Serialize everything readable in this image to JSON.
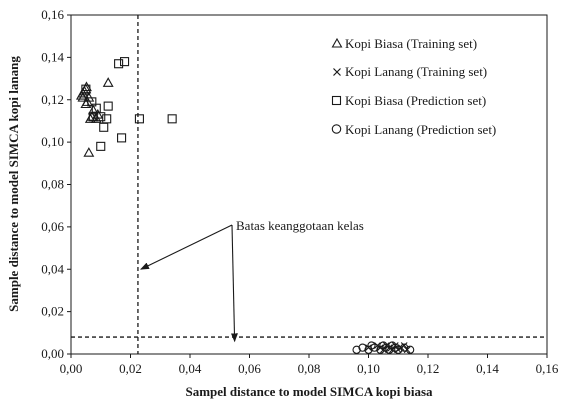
{
  "chart_data": {
    "type": "scatter",
    "xlabel": "Sampel distance to model SIMCA kopi biasa",
    "ylabel": "Sample distance to model SIMCA kopi lanang",
    "xlim": [
      0,
      0.16
    ],
    "ylim": [
      0,
      0.16
    ],
    "x_ticks": [
      "0,00",
      "0,02",
      "0,04",
      "0,06",
      "0,08",
      "0,10",
      "0,12",
      "0,14",
      "0,16"
    ],
    "y_ticks": [
      "0,00",
      "0,02",
      "0,04",
      "0,06",
      "0,08",
      "0,10",
      "0,12",
      "0,14",
      "0,16"
    ],
    "grid": false,
    "legend_position": "top-right",
    "series": [
      {
        "name": "Kopi Biasa (Training set)",
        "marker": "triangle",
        "points": [
          [
            0.004,
            0.123
          ],
          [
            0.005,
            0.125
          ],
          [
            0.0055,
            0.119
          ],
          [
            0.006,
            0.121
          ],
          [
            0.0065,
            0.111
          ],
          [
            0.007,
            0.112
          ],
          [
            0.0075,
            0.115
          ],
          [
            0.004,
            0.121
          ],
          [
            0.0045,
            0.124
          ],
          [
            0.0085,
            0.111
          ],
          [
            0.009,
            0.113
          ],
          [
            0.0125,
            0.128
          ],
          [
            0.006,
            0.095
          ],
          [
            0.005,
            0.118
          ],
          [
            0.0035,
            0.122
          ],
          [
            0.0052,
            0.126
          ]
        ]
      },
      {
        "name": "Kopi Lanang (Training set)",
        "marker": "cross",
        "points": [
          [
            0.1,
            0.003
          ],
          [
            0.103,
            0.004
          ],
          [
            0.105,
            0.002
          ],
          [
            0.106,
            0.004
          ],
          [
            0.107,
            0.003
          ],
          [
            0.108,
            0.002
          ],
          [
            0.109,
            0.004
          ],
          [
            0.11,
            0.002
          ],
          [
            0.111,
            0.003
          ],
          [
            0.113,
            0.002
          ],
          [
            0.104,
            0.003
          ],
          [
            0.112,
            0.004
          ]
        ]
      },
      {
        "name": "Kopi Biasa (Prediction set)",
        "marker": "square",
        "points": [
          [
            0.005,
            0.125
          ],
          [
            0.007,
            0.119
          ],
          [
            0.0085,
            0.116
          ],
          [
            0.01,
            0.112
          ],
          [
            0.01,
            0.098
          ],
          [
            0.011,
            0.107
          ],
          [
            0.0125,
            0.117
          ],
          [
            0.012,
            0.111
          ],
          [
            0.016,
            0.137
          ],
          [
            0.018,
            0.138
          ],
          [
            0.023,
            0.111
          ],
          [
            0.034,
            0.111
          ],
          [
            0.017,
            0.102
          ],
          [
            0.0075,
            0.112
          ]
        ]
      },
      {
        "name": "Kopi Lanang (Prediction set)",
        "marker": "circle",
        "points": [
          [
            0.096,
            0.002
          ],
          [
            0.098,
            0.003
          ],
          [
            0.1,
            0.002
          ],
          [
            0.101,
            0.004
          ],
          [
            0.102,
            0.003
          ],
          [
            0.104,
            0.002
          ],
          [
            0.105,
            0.004
          ],
          [
            0.106,
            0.003
          ],
          [
            0.107,
            0.002
          ],
          [
            0.108,
            0.004
          ],
          [
            0.109,
            0.003
          ],
          [
            0.11,
            0.002
          ],
          [
            0.112,
            0.003
          ],
          [
            0.114,
            0.002
          ]
        ]
      }
    ],
    "thresholds": {
      "x": 0.0225,
      "y": 0.008
    },
    "annotation": {
      "text": "Batas keanggotaan kelas",
      "arrow_targets": [
        [
          0.0235,
          0.04
        ],
        [
          0.055,
          0.006
        ]
      ]
    }
  }
}
